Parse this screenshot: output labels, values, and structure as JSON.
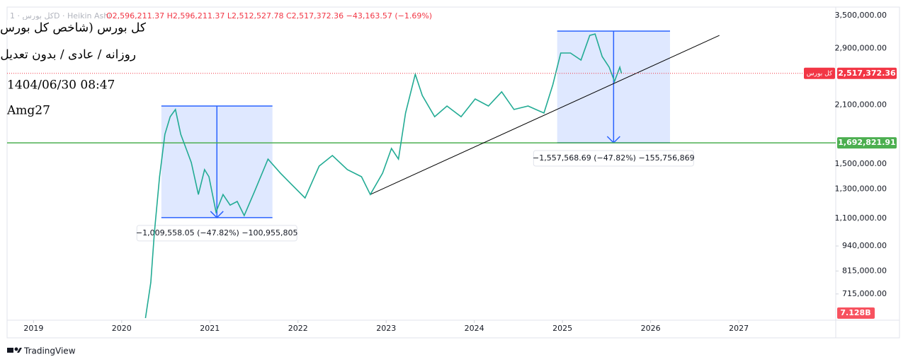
{
  "chart_data": {
    "type": "line",
    "title": "کل بورس (شاخص کل بورس)",
    "subtitle": "روزانه / عادی / بدون تعدیل",
    "timestamp": "1404/06/30 08:47",
    "author": "Amg27",
    "header": {
      "symbol": "کل بورس · 1D · Heikin Ashi",
      "ohlc": "O2,596,211.37 H2,596,211.37 L2,512,527.78 C2,517,372.36 −43,163.57 (−1.69%)"
    },
    "brand": "TradingView",
    "volume_label": "7.128B",
    "log_scale": true,
    "xlim": [
      2018.7,
      2028.1
    ],
    "xticks": [
      2019,
      2020,
      2021,
      2022,
      2023,
      2024,
      2025,
      2026,
      2027
    ],
    "ylim": [
      615600,
      3674000
    ],
    "yticks": [
      {
        "value": 3500000,
        "label": "3,500,000.00"
      },
      {
        "value": 2900000,
        "label": "2,900,000.00"
      },
      {
        "value": 2100000,
        "label": "2,100,000.00"
      },
      {
        "value": 1500000,
        "label": "1,500,000.00"
      },
      {
        "value": 1300000,
        "label": "1,300,000.00"
      },
      {
        "value": 1100000,
        "label": "1,100,000.00"
      },
      {
        "value": 940000,
        "label": "940,000.00"
      },
      {
        "value": 815000,
        "label": "815,000.00"
      },
      {
        "value": 715000,
        "label": "715,000.00"
      }
    ],
    "x": [
      2020.27,
      2020.33,
      2020.37,
      2020.43,
      2020.49,
      2020.55,
      2020.61,
      2020.67,
      2020.73,
      2020.79,
      2020.87,
      2020.94,
      2020.99,
      2021.07,
      2021.15,
      2021.23,
      2021.31,
      2021.39,
      2021.51,
      2021.66,
      2021.8,
      2021.92,
      2022.08,
      2022.24,
      2022.39,
      2022.56,
      2022.72,
      2022.82,
      2022.96,
      2023.06,
      2023.14,
      2023.22,
      2023.33,
      2023.41,
      2023.55,
      2023.69,
      2023.85,
      2024.01,
      2024.16,
      2024.31,
      2024.45,
      2024.61,
      2024.79,
      2024.89,
      2024.98,
      2025.09,
      2025.21,
      2025.31,
      2025.37,
      2025.45,
      2025.53,
      2025.59,
      2025.65,
      2025.67
    ],
    "series": [
      {
        "name": "کل بورس",
        "color": "#22ab94",
        "values": [
          623000,
          763000,
          1011000,
          1396000,
          1778000,
          1966000,
          2048000,
          1778000,
          1640000,
          1513000,
          1261000,
          1453000,
          1396000,
          1141000,
          1261000,
          1187000,
          1212000,
          1118000,
          1288000,
          1543000,
          1425000,
          1340000,
          1236000,
          1483000,
          1575000,
          1453000,
          1396000,
          1261000,
          1425000,
          1640000,
          1543000,
          2007000,
          2504000,
          2219000,
          1966000,
          2089000,
          1966000,
          2175000,
          2089000,
          2265000,
          2048000,
          2089000,
          2007000,
          2358000,
          2827000,
          2827000,
          2715000,
          3126000,
          3151000,
          2770000,
          2607000,
          2405000,
          2607000,
          2517372.36
        ]
      }
    ],
    "last_price": {
      "name": "کل بورس",
      "value": 2517372.36,
      "label": "2,517,372.36",
      "color": "#f23645"
    },
    "horizontal_line": {
      "value": 1692821.91,
      "label": "1,692,821.91",
      "color": "#4caf50"
    },
    "trendline": {
      "x": [
        2022.82,
        2026.78
      ],
      "y": [
        1261000,
        3126000
      ]
    },
    "measures": [
      {
        "x": [
          2020.45,
          2021.71
        ],
        "y": [
          2089000,
          1105000
        ],
        "label": "−1,009,558.05 (−47.82%) −100,955,805"
      },
      {
        "x": [
          2024.94,
          2026.22
        ],
        "y": [
          3203000,
          1694000
        ],
        "label": "−1,557,568.69 (−47.82%) −155,756,869"
      }
    ]
  }
}
